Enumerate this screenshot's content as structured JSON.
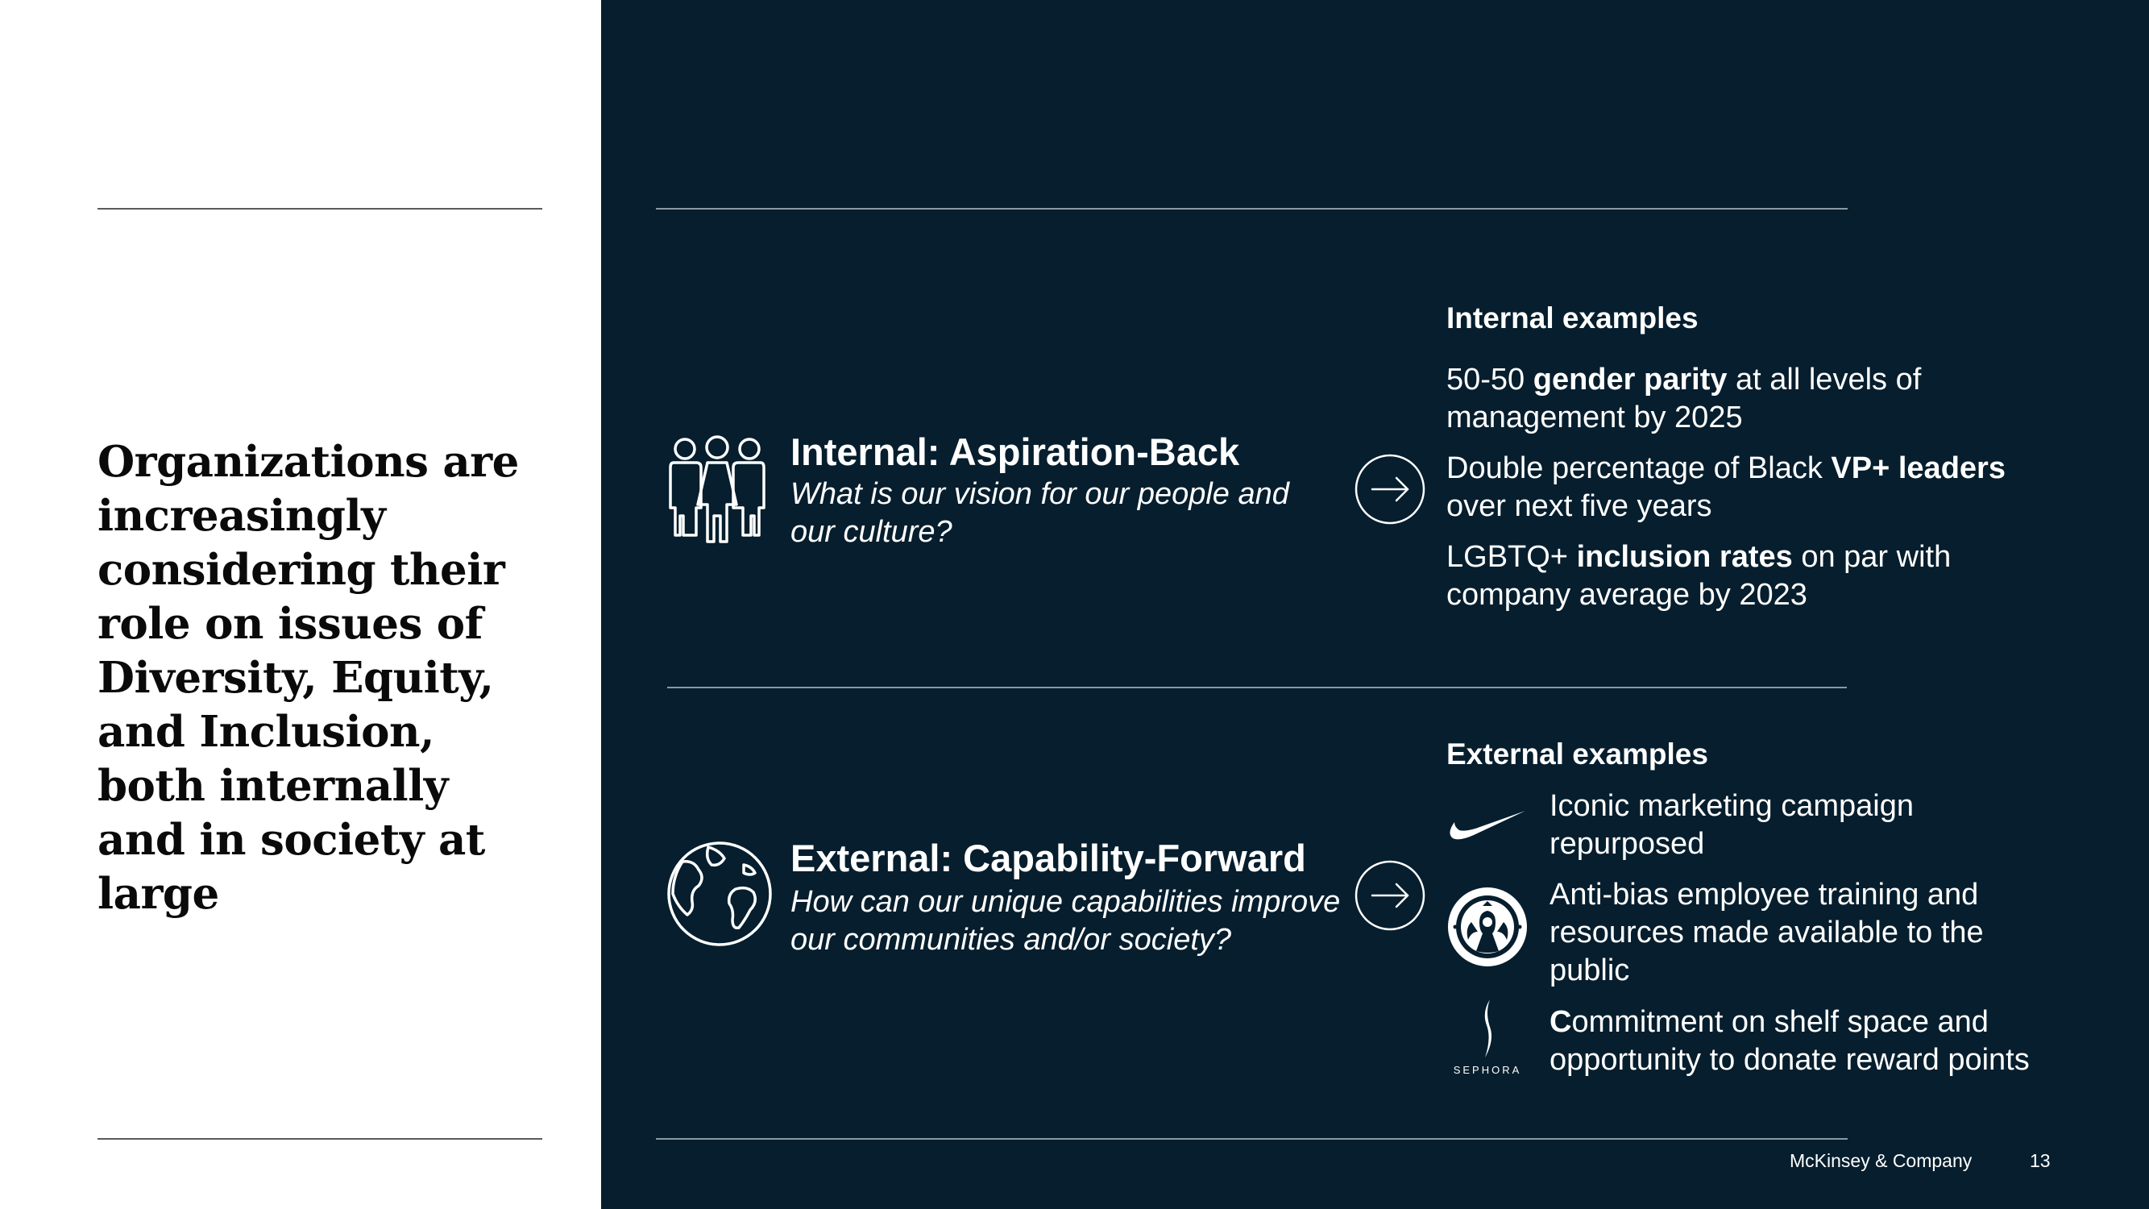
{
  "headline": "Organizations are increasingly considering their role on issues of Diversity, Equity, and Inclusion, both internally and in society at large",
  "internal": {
    "title": "Internal: Aspiration-Back",
    "subtitle": "What is our vision for our people and our culture?",
    "icon": "people-group-icon"
  },
  "external": {
    "title": "External: Capability-Forward",
    "subtitle": "How can our unique capabilities improve our communities and/or society?",
    "icon": "globe-icon"
  },
  "internal_examples": {
    "heading": "Internal examples",
    "items": [
      {
        "pre": "50-50 ",
        "bold": "gender parity",
        "post": " at all levels of management by 2025"
      },
      {
        "pre": "Double percentage of Black ",
        "bold": "VP+ leaders",
        "post": " over next five years"
      },
      {
        "pre": "LGBTQ+ ",
        "bold": "inclusion rates",
        "post": " on par with company average by 2023"
      }
    ]
  },
  "external_examples": {
    "heading": "External examples",
    "items": [
      {
        "logo": "nike-swoosh-logo",
        "pre": "",
        "bold": "",
        "post": "Iconic marketing campaign repurposed"
      },
      {
        "logo": "starbucks-siren-logo",
        "pre": "",
        "bold": "",
        "post": "Anti-bias employee training and resources made available to the public"
      },
      {
        "logo": "sephora-logo",
        "logo_text": "SEPHORA",
        "pre": "",
        "bold": "C",
        "post": "ommitment on shelf space and opportunity to donate reward points"
      }
    ]
  },
  "footer": {
    "company": "McKinsey & Company",
    "page_number": "13"
  },
  "colors": {
    "panel_background": "#061e2d",
    "text_light": "#ffffff",
    "text_dark": "#0a0a0a"
  }
}
